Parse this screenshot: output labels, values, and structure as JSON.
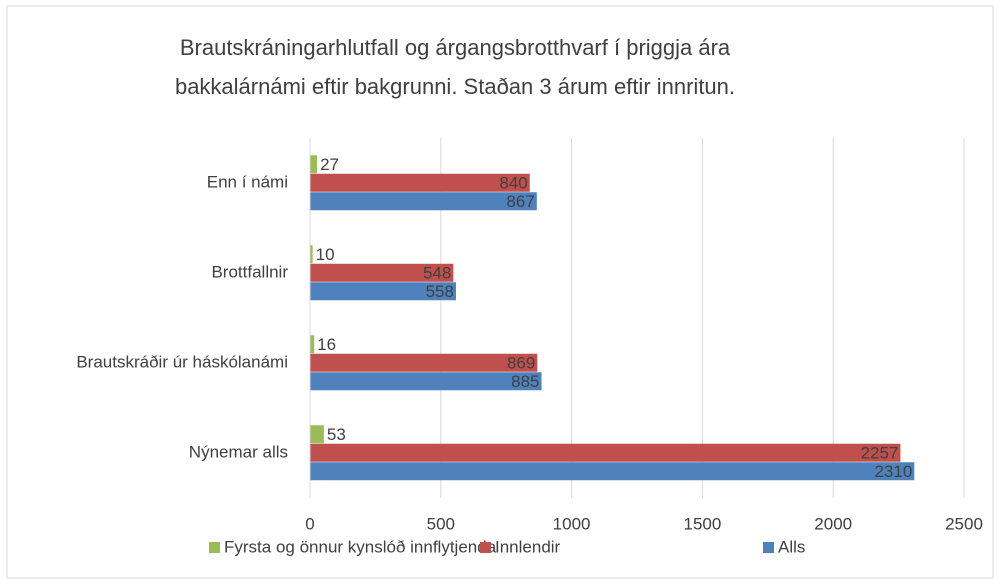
{
  "chart_data": {
    "type": "hbar",
    "title": [
      "Brautskráningarhlutfall og árgangsbrotthvarf í þriggja ára",
      "bakkalárnámi eftir bakgrunni. Staðan 3 árum eftir innritun."
    ],
    "categories": [
      "Enn í námi",
      "Brottfallnir",
      "Brautskráðir úr háskólanámi",
      "Nýnemar alls"
    ],
    "series": [
      {
        "name": "Fyrsta og önnur kynslóð innflytjenda",
        "color": "#9bbb59",
        "values": [
          27,
          10,
          16,
          53
        ]
      },
      {
        "name": "Innlendir",
        "color": "#c0504d",
        "values": [
          840,
          548,
          869,
          2257
        ]
      },
      {
        "name": "Alls",
        "color": "#4f81bd",
        "values": [
          867,
          558,
          885,
          2310
        ]
      }
    ],
    "xlim": [
      0,
      2500
    ],
    "xticks": [
      0,
      500,
      1000,
      1500,
      2000,
      2500
    ],
    "grid": true,
    "legend": "bottom"
  }
}
